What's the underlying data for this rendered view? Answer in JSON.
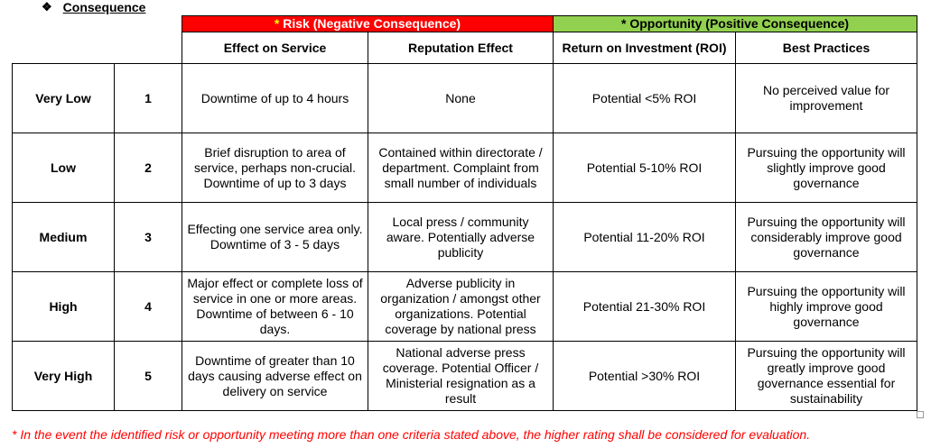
{
  "heading": {
    "bullet": "❖",
    "title": "Consequence"
  },
  "groups": {
    "risk": {
      "asterisk": "*",
      "label": " Risk (Negative Consequence)"
    },
    "opportunity": {
      "label": "* Opportunity (Positive Consequence)"
    }
  },
  "columns": [
    "Effect on Service",
    "Reputation Effect",
    "Return on Investment (ROI)",
    "Best Practices"
  ],
  "rows": [
    {
      "level": "Very Low",
      "rating": "1",
      "service": "Downtime of up to 4 hours",
      "reputation": "None",
      "roi": "Potential <5% ROI",
      "practices": "No perceived value for improvement"
    },
    {
      "level": "Low",
      "rating": "2",
      "service": "Brief disruption to area of service, perhaps non-crucial. Downtime of up to 3 days",
      "reputation": "Contained within directorate / department. Complaint from small number of individuals",
      "roi": "Potential 5-10% ROI",
      "practices": "Pursuing the opportunity will slightly improve good governance"
    },
    {
      "level": "Medium",
      "rating": "3",
      "service": "Effecting one service area only. Downtime of 3 - 5 days",
      "reputation": "Local press / community aware. Potentially adverse publicity",
      "roi": "Potential 11-20% ROI",
      "practices": "Pursuing the opportunity will considerably improve good governance"
    },
    {
      "level": "High",
      "rating": "4",
      "service": "Major effect or complete loss of service in one or more areas. Downtime of between 6 - 10 days.",
      "reputation": "Adverse publicity in organization / amongst other organizations. Potential coverage by national press",
      "roi": "Potential 21-30% ROI",
      "practices": "Pursuing the opportunity will highly improve good governance"
    },
    {
      "level": "Very High",
      "rating": "5",
      "service": "Downtime of greater than 10 days causing adverse effect on delivery on service",
      "reputation": "National adverse press coverage. Potential Officer / Ministerial resignation as a result",
      "roi": "Potential >30% ROI",
      "practices": "Pursuing the opportunity will greatly improve good governance essential for sustainability"
    }
  ],
  "footnote": "* In the event the identified risk or opportunity meeting more than one criteria stated above, the higher rating shall be considered for evaluation.",
  "colors": {
    "risk_header": "#ff0000",
    "opportunity_header": "#92d050",
    "footnote": "#ff0000"
  }
}
